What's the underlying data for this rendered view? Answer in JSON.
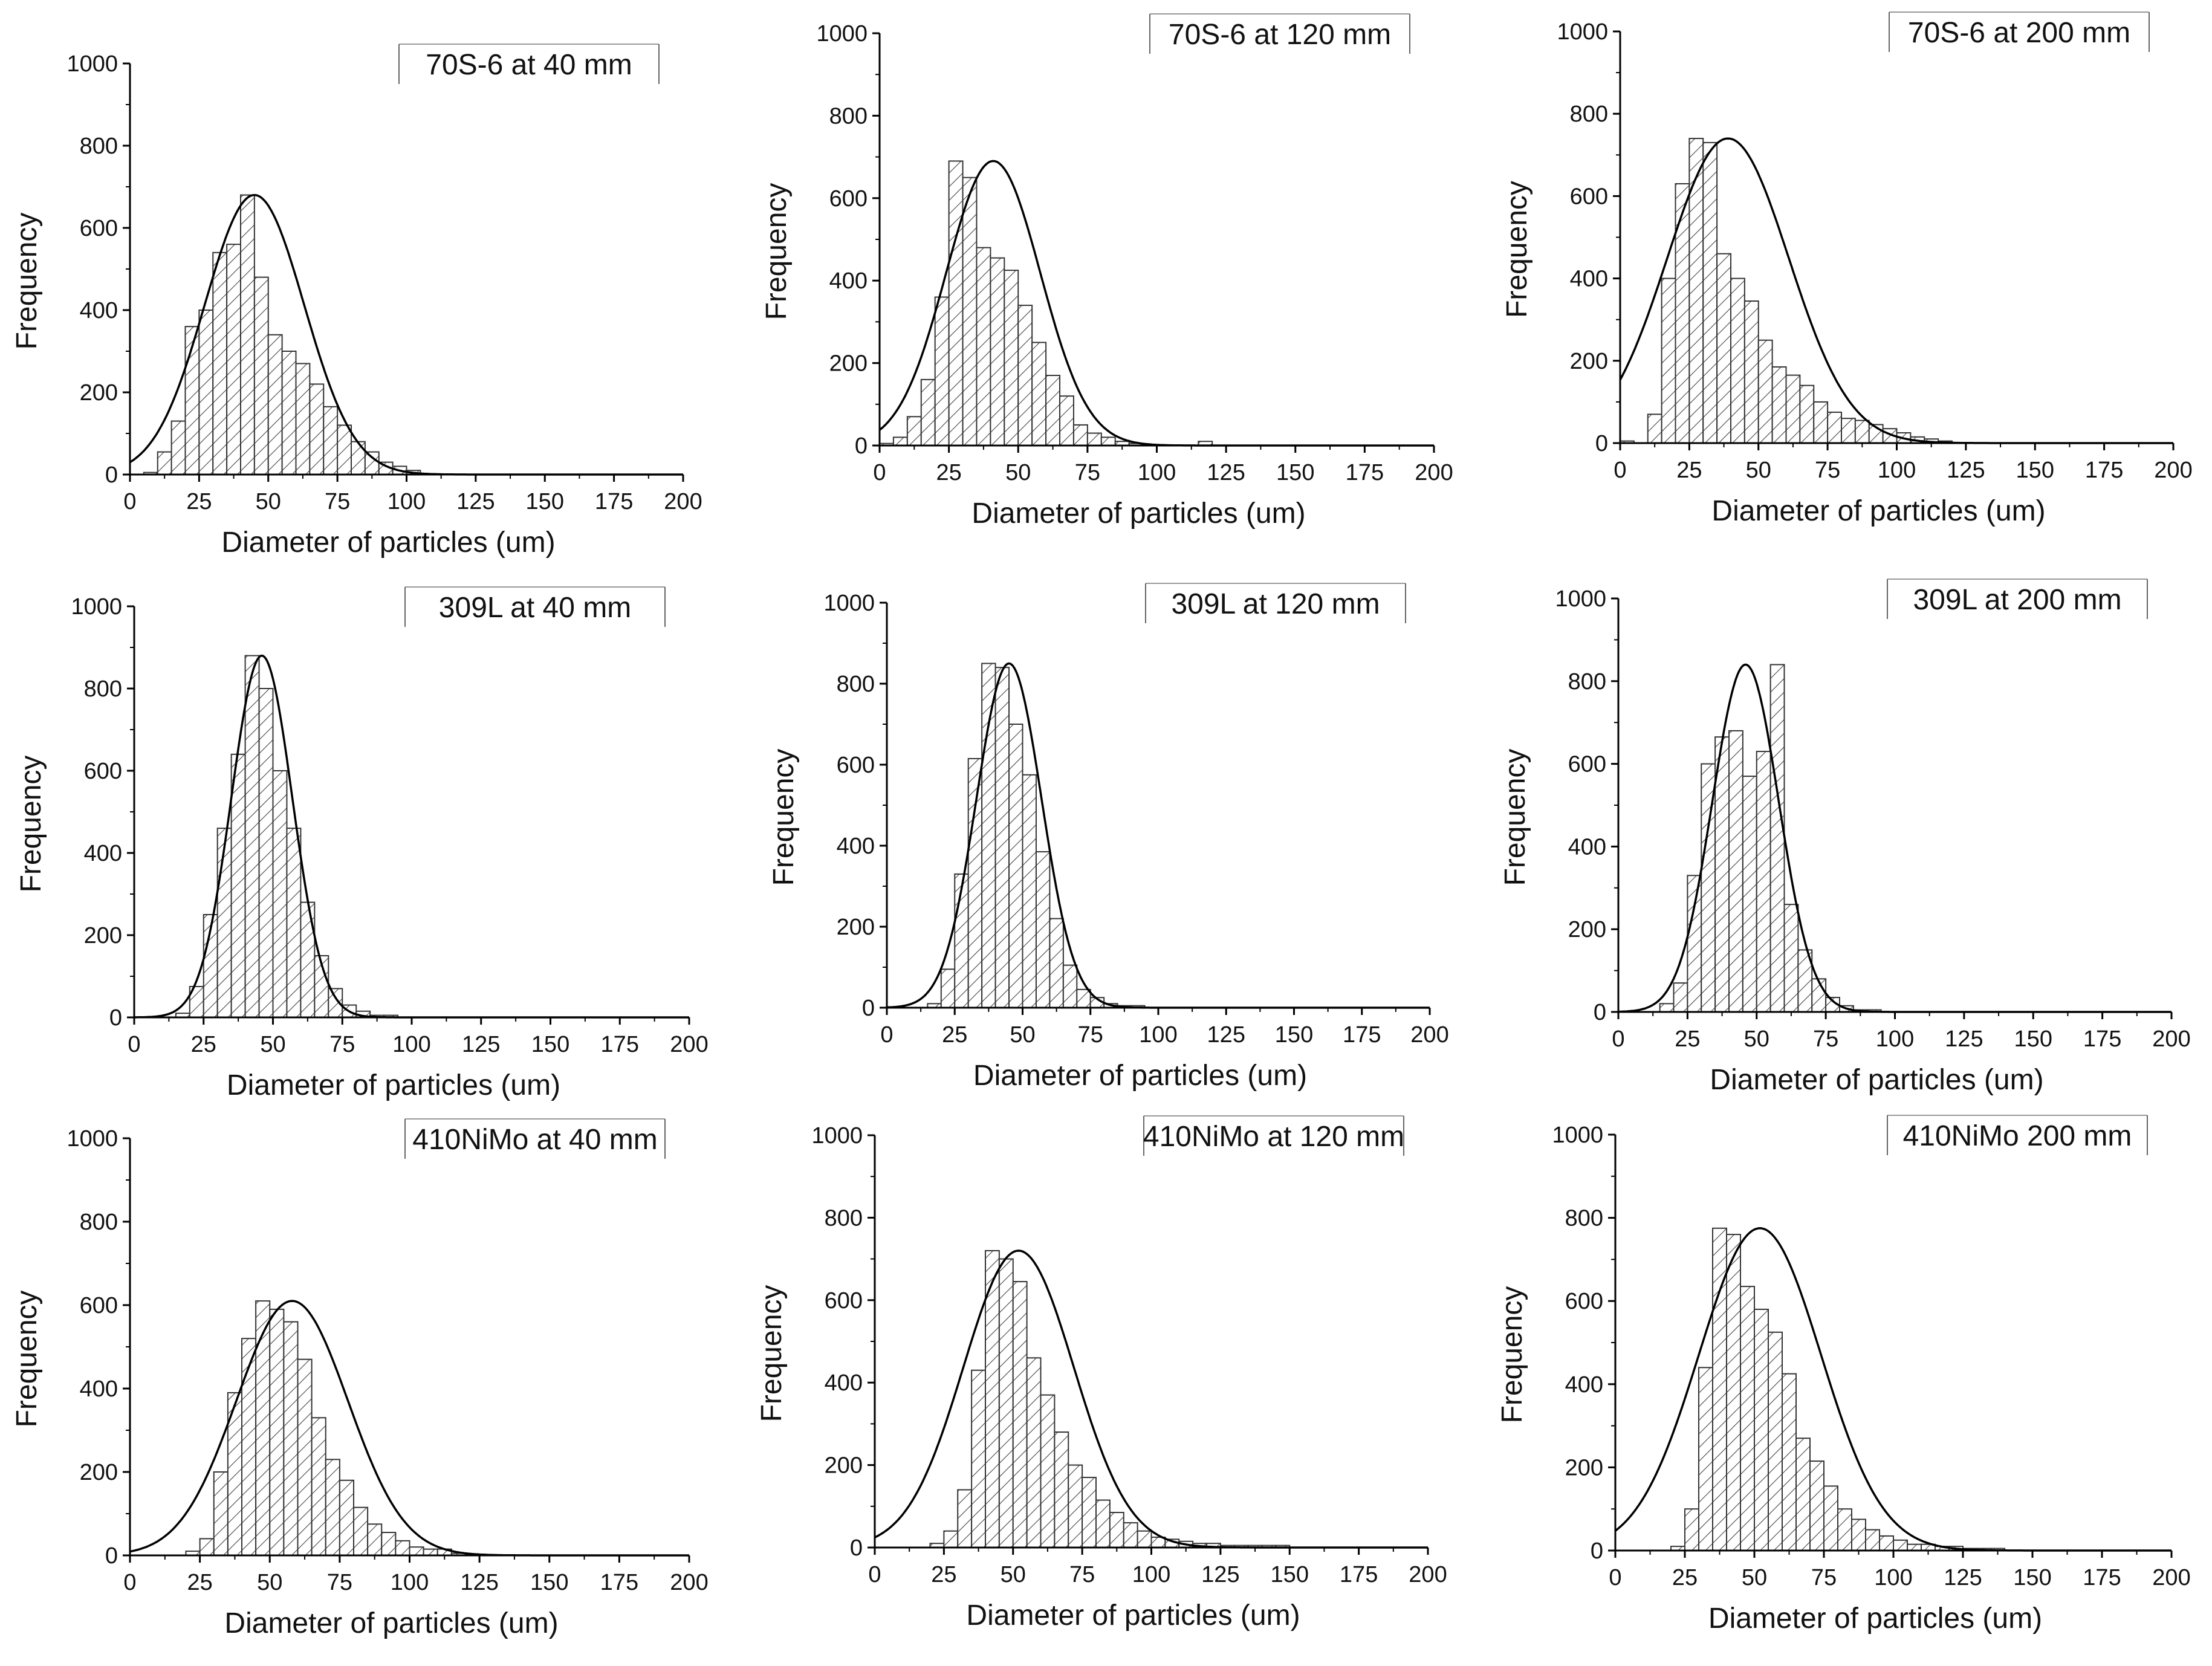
{
  "chart_data": [
    {
      "type": "bar",
      "title": "70S-6 at 40 mm",
      "xlabel": "Diameter of particles (um)",
      "ylabel": "Frequency",
      "xlim": [
        0,
        200
      ],
      "ylim": [
        0,
        1000
      ],
      "xticks": [
        0,
        25,
        50,
        75,
        100,
        125,
        150,
        175,
        200
      ],
      "yticks": [
        0,
        200,
        400,
        600,
        800,
        1000
      ],
      "bin_width": 5,
      "bin_start": 5,
      "values": [
        5,
        55,
        130,
        360,
        400,
        540,
        560,
        680,
        480,
        340,
        300,
        270,
        220,
        165,
        120,
        80,
        55,
        30,
        20,
        10
      ],
      "fit": {
        "type": "normal",
        "mean": 45,
        "sd": 18,
        "peak": 680
      },
      "legend_position": "top-right"
    },
    {
      "type": "bar",
      "title": "70S-6 at 120 mm",
      "xlabel": "Diameter of particles (um)",
      "ylabel": "Frequency",
      "xlim": [
        0,
        200
      ],
      "ylim": [
        0,
        1000
      ],
      "xticks": [
        0,
        25,
        50,
        75,
        100,
        125,
        150,
        175,
        200
      ],
      "yticks": [
        0,
        200,
        400,
        600,
        800,
        1000
      ],
      "bin_width": 5,
      "bin_start": 0,
      "values": [
        5,
        20,
        70,
        160,
        360,
        690,
        650,
        480,
        455,
        425,
        340,
        250,
        170,
        120,
        50,
        30,
        20,
        10,
        5,
        0,
        0,
        0,
        0,
        10
      ],
      "fit": {
        "type": "normal",
        "mean": 41,
        "sd": 17,
        "peak": 690
      },
      "legend_position": "top-right"
    },
    {
      "type": "bar",
      "title": "70S-6 at 200 mm",
      "xlabel": "Diameter of particles (um)",
      "ylabel": "Frequency",
      "xlim": [
        0,
        200
      ],
      "ylim": [
        0,
        1000
      ],
      "xticks": [
        0,
        25,
        50,
        75,
        100,
        125,
        150,
        175,
        200
      ],
      "yticks": [
        0,
        200,
        400,
        600,
        800,
        1000
      ],
      "bin_width": 5,
      "bin_start": 0,
      "values": [
        5,
        0,
        70,
        400,
        630,
        740,
        730,
        460,
        400,
        345,
        250,
        185,
        165,
        140,
        100,
        75,
        60,
        55,
        45,
        35,
        25,
        15,
        10,
        5
      ],
      "fit": {
        "type": "normal",
        "mean": 39,
        "sd": 22,
        "peak": 740
      },
      "legend_position": "top-right"
    },
    {
      "type": "bar",
      "title": "309L at 40 mm",
      "xlabel": "Diameter of particles (um)",
      "ylabel": "Frequency",
      "xlim": [
        0,
        200
      ],
      "ylim": [
        0,
        1000
      ],
      "xticks": [
        0,
        25,
        50,
        75,
        100,
        125,
        150,
        175,
        200
      ],
      "yticks": [
        0,
        200,
        400,
        600,
        800,
        1000
      ],
      "bin_width": 5,
      "bin_start": 15,
      "values": [
        10,
        75,
        250,
        460,
        640,
        880,
        800,
        600,
        460,
        280,
        150,
        70,
        30,
        15,
        5,
        5
      ],
      "fit": {
        "type": "normal",
        "mean": 46,
        "sd": 11,
        "peak": 880
      },
      "legend_position": "top-right"
    },
    {
      "type": "bar",
      "title": "309L at 120 mm",
      "xlabel": "Diameter of particles (um)",
      "ylabel": "Frequency",
      "xlim": [
        0,
        200
      ],
      "ylim": [
        0,
        1000
      ],
      "xticks": [
        0,
        25,
        50,
        75,
        100,
        125,
        150,
        175,
        200
      ],
      "yticks": [
        0,
        200,
        400,
        600,
        800,
        1000
      ],
      "bin_width": 5,
      "bin_start": 15,
      "values": [
        10,
        95,
        330,
        615,
        850,
        840,
        700,
        575,
        385,
        220,
        105,
        45,
        25,
        10,
        5,
        5
      ],
      "fit": {
        "type": "normal",
        "mean": 45,
        "sd": 12,
        "peak": 850
      },
      "legend_position": "top-right"
    },
    {
      "type": "bar",
      "title": "309L at 200 mm",
      "xlabel": "Diameter of particles (um)",
      "ylabel": "Frequency",
      "xlim": [
        0,
        200
      ],
      "ylim": [
        0,
        1000
      ],
      "xticks": [
        0,
        25,
        50,
        75,
        100,
        125,
        150,
        175,
        200
      ],
      "yticks": [
        0,
        200,
        400,
        600,
        800,
        1000
      ],
      "bin_width": 5,
      "bin_start": 15,
      "values": [
        20,
        70,
        330,
        600,
        665,
        680,
        570,
        630,
        840,
        260,
        150,
        80,
        35,
        15,
        5,
        5
      ],
      "fit": {
        "type": "normal",
        "mean": 46,
        "sd": 12,
        "peak": 840
      },
      "legend_position": "top-right"
    },
    {
      "type": "bar",
      "title": "410NiMo at 40 mm",
      "xlabel": "Diameter of particles (um)",
      "ylabel": "Frequency",
      "xlim": [
        0,
        200
      ],
      "ylim": [
        0,
        1000
      ],
      "xticks": [
        0,
        25,
        50,
        75,
        100,
        125,
        150,
        175,
        200
      ],
      "yticks": [
        0,
        200,
        400,
        600,
        800,
        1000
      ],
      "bin_width": 5,
      "bin_start": 20,
      "values": [
        10,
        40,
        200,
        390,
        520,
        610,
        590,
        560,
        470,
        330,
        230,
        180,
        115,
        75,
        55,
        35,
        20,
        15,
        15,
        5
      ],
      "fit": {
        "type": "normal",
        "mean": 58,
        "sd": 20,
        "peak": 610
      },
      "legend_position": "top-right"
    },
    {
      "type": "bar",
      "title": "410NiMo at 120 mm",
      "xlabel": "Diameter of particles (um)",
      "ylabel": "Frequency",
      "xlim": [
        0,
        200
      ],
      "ylim": [
        0,
        1000
      ],
      "xticks": [
        0,
        25,
        50,
        75,
        100,
        125,
        150,
        175,
        200
      ],
      "yticks": [
        0,
        200,
        400,
        600,
        800,
        1000
      ],
      "bin_width": 5,
      "bin_start": 20,
      "values": [
        10,
        40,
        140,
        430,
        720,
        700,
        645,
        460,
        370,
        280,
        200,
        170,
        115,
        85,
        60,
        40,
        25,
        20,
        15,
        10,
        10,
        5,
        5,
        5,
        5,
        5
      ],
      "fit": {
        "type": "normal",
        "mean": 52,
        "sd": 20,
        "peak": 720
      },
      "legend_position": "top-right"
    },
    {
      "type": "bar",
      "title": "410NiMo 200 mm",
      "xlabel": "Diameter of particles (um)",
      "ylabel": "Frequency",
      "xlim": [
        0,
        200
      ],
      "ylim": [
        0,
        1000
      ],
      "xticks": [
        0,
        25,
        50,
        75,
        100,
        125,
        150,
        175,
        200
      ],
      "yticks": [
        0,
        200,
        400,
        600,
        800,
        1000
      ],
      "bin_width": 5,
      "bin_start": 20,
      "values": [
        10,
        100,
        440,
        775,
        760,
        635,
        580,
        525,
        425,
        270,
        215,
        155,
        100,
        75,
        50,
        35,
        25,
        15,
        15,
        10,
        10,
        5,
        5,
        5
      ],
      "fit": {
        "type": "normal",
        "mean": 52,
        "sd": 22,
        "peak": 775
      },
      "legend_position": "top-right"
    }
  ]
}
